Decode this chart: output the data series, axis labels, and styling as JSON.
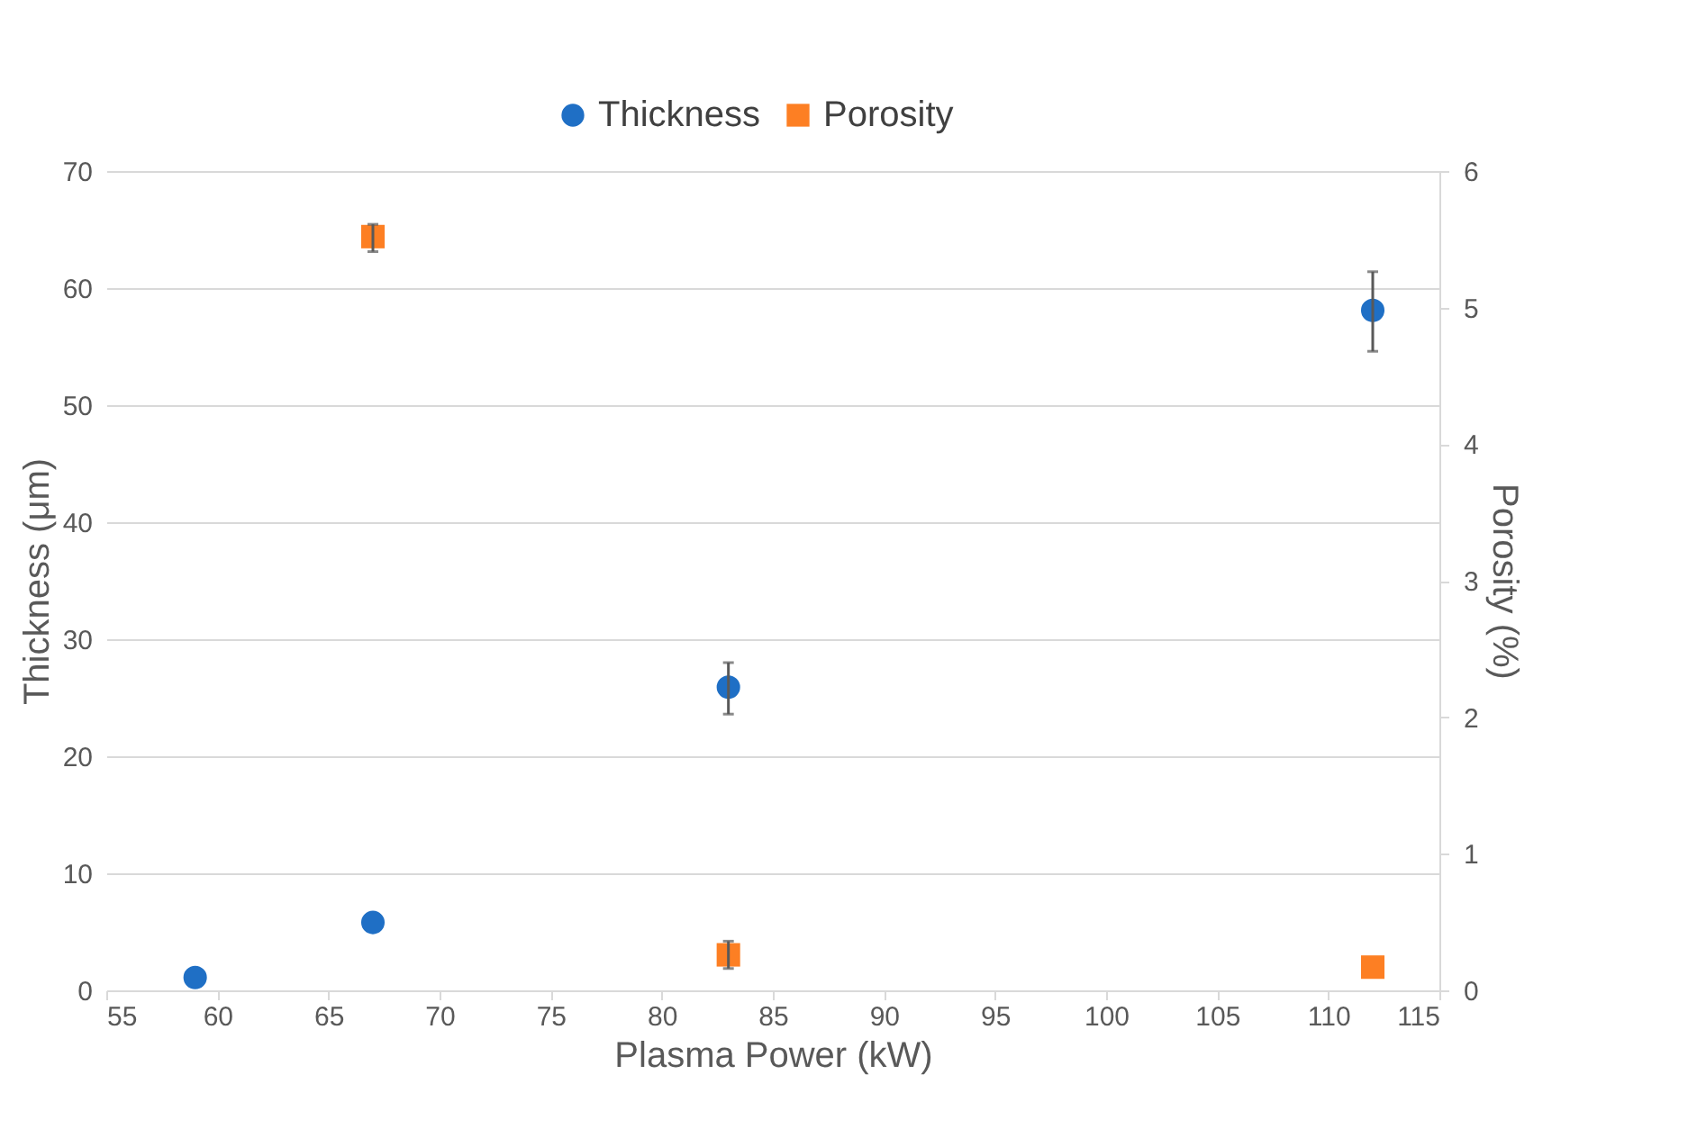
{
  "chart_data": {
    "type": "scatter",
    "xlabel": "Plasma Power (kW)",
    "ylabel": "Thickness (μm)",
    "y2label": "Porosity (%)",
    "xlim": [
      55,
      115
    ],
    "xticks": [
      55,
      60,
      65,
      70,
      75,
      80,
      85,
      90,
      95,
      100,
      105,
      110,
      115
    ],
    "ylim": [
      0,
      70
    ],
    "yticks": [
      0,
      10,
      20,
      30,
      40,
      50,
      60,
      70
    ],
    "y2lim": [
      0,
      6
    ],
    "y2ticks": [
      0,
      1,
      2,
      3,
      4,
      5,
      6
    ],
    "grid": "y",
    "legend": "top",
    "series": [
      {
        "name": "Thickness",
        "color": "#1f6fc5",
        "marker": "circle",
        "x": [
          59,
          67,
          83,
          112
        ],
        "values": [
          1.1,
          5.8,
          25.9,
          58.1
        ],
        "errors": [
          null,
          null,
          [
            23.6,
            28.0
          ],
          [
            54.6,
            61.4
          ]
        ]
      },
      {
        "name": "Porosity",
        "color": "#fd7f23",
        "marker": "square",
        "axis": "y2",
        "x": [
          67,
          83,
          112
        ],
        "values": [
          5.52,
          0.26,
          0.17
        ],
        "errors": [
          [
            5.41,
            5.61
          ],
          [
            0.16,
            0.36
          ],
          null
        ]
      }
    ]
  }
}
